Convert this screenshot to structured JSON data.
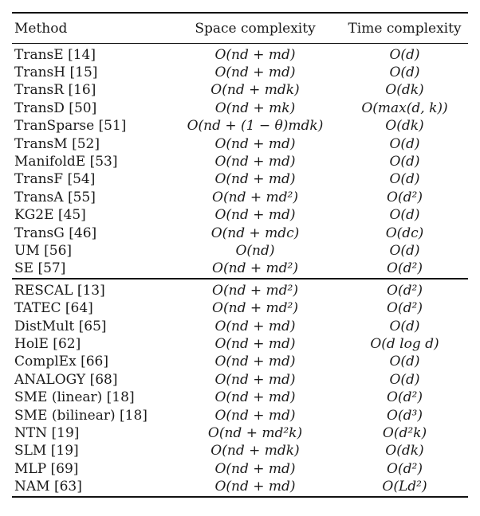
{
  "table": {
    "headers": {
      "method": "Method",
      "space": "Space complexity",
      "time": "Time complexity"
    },
    "groups": [
      [
        {
          "method": "TransE [14]",
          "space": "O(nd + md)",
          "time": "O(d)"
        },
        {
          "method": "TransH [15]",
          "space": "O(nd + md)",
          "time": "O(d)"
        },
        {
          "method": "TransR [16]",
          "space": "O(nd + mdk)",
          "time": "O(dk)"
        },
        {
          "method": "TransD [50]",
          "space": "O(nd + mk)",
          "time": "O(max(d, k))"
        },
        {
          "method": "TranSparse [51]",
          "space": "O(nd + (1 − θ)mdk)",
          "time": "O(dk)"
        },
        {
          "method": "TransM [52]",
          "space": "O(nd + md)",
          "time": "O(d)"
        },
        {
          "method": "ManifoldE [53]",
          "space": "O(nd + md)",
          "time": "O(d)"
        },
        {
          "method": "TransF [54]",
          "space": "O(nd + md)",
          "time": "O(d)"
        },
        {
          "method": "TransA [55]",
          "space": "O(nd + md²)",
          "time": "O(d²)"
        },
        {
          "method": "KG2E [45]",
          "space": "O(nd + md)",
          "time": "O(d)"
        },
        {
          "method": "TransG [46]",
          "space": "O(nd + mdc)",
          "time": "O(dc)"
        },
        {
          "method": "UM [56]",
          "space": "O(nd)",
          "time": "O(d)"
        },
        {
          "method": "SE [57]",
          "space": "O(nd + md²)",
          "time": "O(d²)"
        }
      ],
      [
        {
          "method": "RESCAL [13]",
          "space": "O(nd + md²)",
          "time": "O(d²)"
        },
        {
          "method": "TATEC [64]",
          "space": "O(nd + md²)",
          "time": "O(d²)"
        },
        {
          "method": "DistMult [65]",
          "space": "O(nd + md)",
          "time": "O(d)"
        },
        {
          "method": "HolE [62]",
          "space": "O(nd + md)",
          "time": "O(d log d)"
        },
        {
          "method": "ComplEx [66]",
          "space": "O(nd + md)",
          "time": "O(d)"
        },
        {
          "method": "ANALOGY [68]",
          "space": "O(nd + md)",
          "time": "O(d)"
        },
        {
          "method": "SME (linear) [18]",
          "space": "O(nd + md)",
          "time": "O(d²)"
        },
        {
          "method": "SME (bilinear) [18]",
          "space": "O(nd + md)",
          "time": "O(d³)"
        },
        {
          "method": "NTN [19]",
          "space": "O(nd + md²k)",
          "time": "O(d²k)"
        },
        {
          "method": "SLM [19]",
          "space": "O(nd + mdk)",
          "time": "O(dk)"
        },
        {
          "method": "MLP [69]",
          "space": "O(nd + md)",
          "time": "O(d²)"
        },
        {
          "method": "NAM [63]",
          "space": "O(nd + md)",
          "time": "O(Ld²)"
        }
      ]
    ]
  }
}
